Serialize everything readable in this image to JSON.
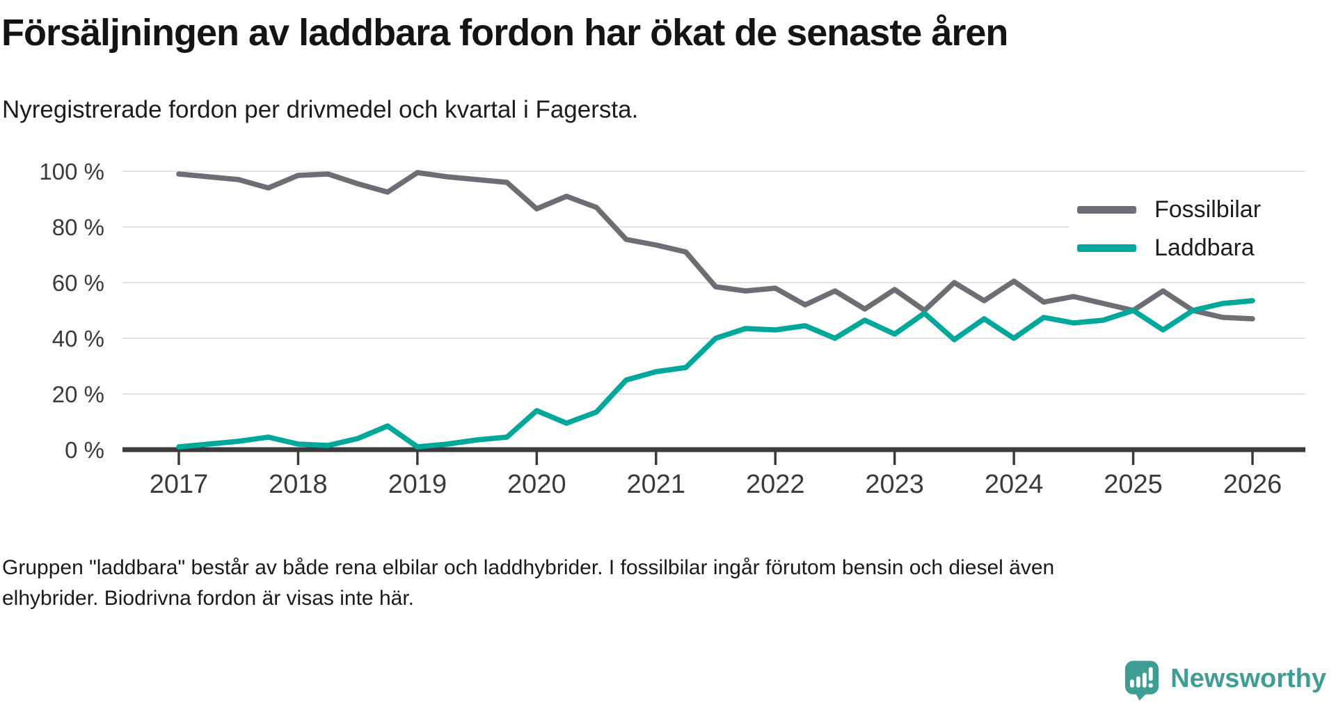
{
  "header": {
    "title": "Försäljningen av laddbara fordon har ökat de senaste åren",
    "subtitle": "Nyregistrerade fordon per drivmedel och kvartal i Fagersta."
  },
  "chart_data": {
    "type": "line",
    "title": "Försäljningen av laddbara fordon har ökat de senaste åren",
    "subtitle": "Nyregistrerade fordon per drivmedel och kvartal i Fagersta.",
    "x_unit": "quarter",
    "categories": [
      "2017 Q1",
      "2017 Q2",
      "2017 Q3",
      "2017 Q4",
      "2018 Q1",
      "2018 Q2",
      "2018 Q3",
      "2018 Q4",
      "2019 Q1",
      "2019 Q2",
      "2019 Q3",
      "2019 Q4",
      "2020 Q1",
      "2020 Q2",
      "2020 Q3",
      "2020 Q4",
      "2021 Q1",
      "2021 Q2",
      "2021 Q3",
      "2021 Q4",
      "2022 Q1",
      "2022 Q2",
      "2022 Q3",
      "2022 Q4",
      "2023 Q1",
      "2023 Q2",
      "2023 Q3",
      "2023 Q4",
      "2024 Q1",
      "2024 Q2",
      "2024 Q3",
      "2024 Q4",
      "2025 Q1",
      "2025 Q2",
      "2025 Q3",
      "2025 Q4",
      "2026 Q1"
    ],
    "series": [
      {
        "name": "Fossilbilar",
        "color": "#6d6d75",
        "values": [
          99,
          98,
          97,
          94,
          98.5,
          99,
          95.5,
          92.5,
          99.5,
          98,
          97,
          96,
          86.5,
          91,
          87,
          75.5,
          73.5,
          71,
          58.5,
          57,
          58,
          52,
          57,
          50.5,
          57.5,
          50,
          60,
          53.5,
          60.5,
          53,
          55,
          52.5,
          50,
          57,
          50,
          47.5,
          47
        ]
      },
      {
        "name": "Laddbara",
        "color": "#00a79b",
        "values": [
          1,
          2,
          3,
          4.5,
          2,
          1.5,
          4,
          8.5,
          1,
          2,
          3.5,
          4.5,
          14,
          9.5,
          13.5,
          25,
          28,
          29.5,
          40,
          43.5,
          43,
          44.5,
          40,
          46.5,
          41.5,
          49,
          39.5,
          47,
          40,
          47.5,
          45.5,
          46.5,
          50,
          43,
          50,
          52.5,
          53.5
        ]
      }
    ],
    "ylim": [
      0,
      100
    ],
    "ytick_interval": 20,
    "ytick_suffix": " %",
    "xticks": [
      "2017",
      "2018",
      "2019",
      "2020",
      "2021",
      "2022",
      "2023",
      "2024",
      "2025",
      "2026"
    ],
    "grid": "horizontal",
    "legend_position": "top-right",
    "axis_color": "#3b3b3b",
    "grid_color": "#e4e4e4",
    "tick_label_color": "#3a3a3a"
  },
  "legend": {
    "items": [
      {
        "label": "Fossilbilar",
        "color": "#6d6d75"
      },
      {
        "label": "Laddbara",
        "color": "#00a79b"
      }
    ]
  },
  "footer": {
    "lines": [
      "Gruppen \"laddbara\" består av både rena elbilar och laddhybrider. I fossilbilar ingår förutom bensin och diesel även",
      "elhybrider. Biodrivna fordon är visas inte här."
    ]
  },
  "logo": {
    "text": "Newsworthy",
    "color": "#3f9e94"
  }
}
